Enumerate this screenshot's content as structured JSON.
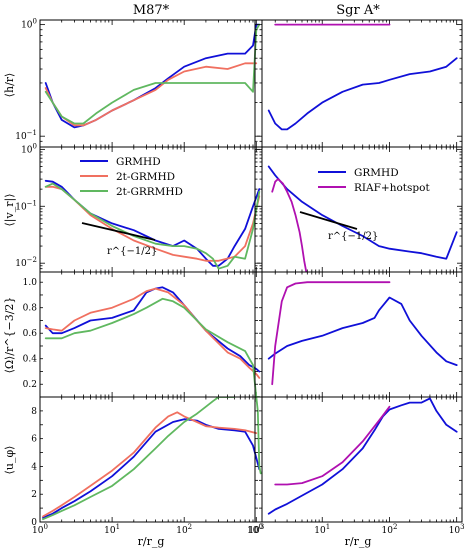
{
  "figure": {
    "col_titles": [
      "M87$^*$",
      "Sgr A$^*$"
    ],
    "col_title_display": [
      "M87*",
      "Sgr A*"
    ],
    "xlabel": "r/r_g",
    "ylabels": [
      "⟨h/r⟩",
      "⟨|v_r|⟩",
      "⟨Ω⟩/r^{−3/2}",
      "⟨u_φ⟩"
    ],
    "annotations": {
      "m87_slope": "r^{−1/2}",
      "sgr_slope": "r^{−1/2}"
    },
    "legend_left": [
      "GRMHD",
      "2t-GRMHD",
      "2t-GRRMHD"
    ],
    "legend_right": [
      "GRMHD",
      "RIAF+hotspot"
    ],
    "colors": {
      "GRMHD": "#1010d8",
      "2t-GRMHD": "#f07060",
      "2t-GRRMHD": "#60b860",
      "RIAF": "#b010b0"
    },
    "xtick_labels": [
      "10^0",
      "10^1",
      "10^2",
      "10^3"
    ]
  },
  "chart_data": [
    {
      "type": "line",
      "panel": "M87 h/r",
      "xscale": "log",
      "yscale": "log",
      "xlim": [
        1,
        1200
      ],
      "ylim": [
        0.08,
        1.1
      ],
      "yticks": [
        0.1,
        1
      ],
      "series": [
        {
          "name": "GRMHD",
          "x": [
            1.2,
            1.5,
            2,
            3,
            4,
            6,
            10,
            20,
            40,
            60,
            100,
            200,
            400,
            700,
            900,
            1000,
            1100
          ],
          "y": [
            0.3,
            0.2,
            0.14,
            0.12,
            0.125,
            0.14,
            0.17,
            0.21,
            0.27,
            0.33,
            0.42,
            0.5,
            0.55,
            0.55,
            0.65,
            1.0,
            1.0
          ]
        },
        {
          "name": "2t-GRMHD",
          "x": [
            1.2,
            1.5,
            2,
            3,
            4,
            6,
            10,
            20,
            40,
            60,
            100,
            200,
            400,
            700,
            1000
          ],
          "y": [
            0.27,
            0.2,
            0.15,
            0.125,
            0.125,
            0.14,
            0.17,
            0.21,
            0.26,
            0.32,
            0.38,
            0.42,
            0.4,
            0.45,
            0.45
          ]
        },
        {
          "name": "2t-GRRMHD",
          "x": [
            1.2,
            1.5,
            2,
            3,
            4,
            6,
            10,
            20,
            40,
            60,
            100,
            200,
            400,
            700,
            900,
            1000,
            1100
          ],
          "y": [
            0.25,
            0.2,
            0.15,
            0.13,
            0.13,
            0.16,
            0.2,
            0.26,
            0.3,
            0.3,
            0.3,
            0.3,
            0.3,
            0.3,
            0.25,
            0.9,
            1.0
          ]
        }
      ]
    },
    {
      "type": "line",
      "panel": "Sgr A h/r",
      "xscale": "log",
      "yscale": "log",
      "xlim": [
        1,
        1200
      ],
      "ylim": [
        0.08,
        1.1
      ],
      "series": [
        {
          "name": "GRMHD",
          "x": [
            1.6,
            2,
            2.5,
            3,
            4,
            6,
            10,
            20,
            40,
            70,
            100,
            200,
            400,
            700,
            1000
          ],
          "y": [
            0.17,
            0.13,
            0.115,
            0.115,
            0.13,
            0.16,
            0.2,
            0.25,
            0.29,
            0.3,
            0.32,
            0.36,
            0.38,
            0.42,
            0.5
          ]
        },
        {
          "name": "RIAF+hotspot",
          "x": [
            2,
            100
          ],
          "y": [
            1.0,
            1.0
          ]
        }
      ]
    },
    {
      "type": "line",
      "panel": "M87 |v_r|",
      "xscale": "log",
      "yscale": "log",
      "xlim": [
        1,
        1200
      ],
      "ylim": [
        0.007,
        1.1
      ],
      "yticks": [
        0.01,
        0.1,
        1
      ],
      "series": [
        {
          "name": "GRMHD",
          "x": [
            1.2,
            1.5,
            2,
            3,
            5,
            10,
            20,
            40,
            70,
            100,
            150,
            200,
            250,
            300,
            400,
            500,
            700,
            900,
            1100
          ],
          "y": [
            0.28,
            0.27,
            0.22,
            0.13,
            0.075,
            0.05,
            0.038,
            0.025,
            0.02,
            0.025,
            0.018,
            0.012,
            0.009,
            0.009,
            0.012,
            0.02,
            0.04,
            0.1,
            0.2
          ]
        },
        {
          "name": "2t-GRMHD",
          "x": [
            1.2,
            1.5,
            2,
            3,
            5,
            10,
            20,
            40,
            70,
            100,
            150,
            200,
            300,
            500,
            700,
            900,
            1100
          ],
          "y": [
            0.22,
            0.22,
            0.2,
            0.13,
            0.07,
            0.04,
            0.025,
            0.018,
            0.014,
            0.013,
            0.012,
            0.011,
            0.011,
            0.013,
            0.02,
            0.05,
            0.15
          ]
        },
        {
          "name": "2t-GRRMHD",
          "x": [
            1.2,
            1.5,
            2,
            3,
            5,
            10,
            20,
            40,
            70,
            100,
            150,
            200,
            250,
            300,
            400,
            500,
            700,
            900,
            1100
          ],
          "y": [
            0.22,
            0.25,
            0.2,
            0.13,
            0.075,
            0.045,
            0.03,
            0.022,
            0.02,
            0.02,
            0.018,
            0.015,
            0.012,
            0.008,
            0.009,
            0.013,
            0.012,
            0.04,
            0.18
          ]
        }
      ]
    },
    {
      "type": "line",
      "panel": "Sgr A |v_r|",
      "xscale": "log",
      "yscale": "log",
      "xlim": [
        1,
        1200
      ],
      "ylim": [
        0.007,
        1.1
      ],
      "series": [
        {
          "name": "GRMHD",
          "x": [
            1.6,
            2,
            3,
            5,
            10,
            20,
            40,
            70,
            100,
            200,
            300,
            500,
            700,
            1000
          ],
          "y": [
            0.5,
            0.35,
            0.2,
            0.12,
            0.07,
            0.045,
            0.03,
            0.02,
            0.018,
            0.016,
            0.015,
            0.013,
            0.012,
            0.035
          ]
        },
        {
          "name": "RIAF+hotspot",
          "x": [
            1.8,
            2,
            2.2,
            2.6,
            3,
            3.5,
            4,
            4.6,
            5,
            5.4,
            5.8
          ],
          "y": [
            0.18,
            0.27,
            0.3,
            0.25,
            0.18,
            0.12,
            0.07,
            0.035,
            0.02,
            0.011,
            0.007
          ]
        }
      ]
    },
    {
      "type": "line",
      "panel": "M87 Omega",
      "xscale": "log",
      "yscale": "linear",
      "xlim": [
        1,
        1200
      ],
      "ylim": [
        0.1,
        1.08
      ],
      "yticks": [
        0.2,
        0.4,
        0.6,
        0.8,
        1.0
      ],
      "series": [
        {
          "name": "GRMHD",
          "x": [
            1.2,
            1.5,
            2,
            3,
            5,
            10,
            20,
            30,
            40,
            50,
            70,
            100,
            200,
            400,
            600,
            800,
            1000,
            1100
          ],
          "y": [
            0.66,
            0.6,
            0.6,
            0.64,
            0.7,
            0.72,
            0.78,
            0.92,
            0.95,
            0.96,
            0.92,
            0.82,
            0.62,
            0.48,
            0.42,
            0.35,
            0.32,
            0.3
          ]
        },
        {
          "name": "2t-GRMHD",
          "x": [
            1.2,
            1.5,
            2,
            3,
            5,
            10,
            20,
            30,
            40,
            60,
            100,
            150,
            200,
            300,
            400,
            600,
            800,
            1000,
            1100
          ],
          "y": [
            0.64,
            0.63,
            0.62,
            0.7,
            0.76,
            0.8,
            0.87,
            0.93,
            0.95,
            0.92,
            0.82,
            0.7,
            0.62,
            0.52,
            0.45,
            0.4,
            0.33,
            0.28,
            0.25
          ]
        },
        {
          "name": "2t-GRRMHD",
          "x": [
            1.2,
            1.5,
            2,
            3,
            5,
            10,
            20,
            30,
            50,
            70,
            100,
            200,
            400,
            700,
            900,
            1000,
            1100
          ],
          "y": [
            0.56,
            0.56,
            0.56,
            0.6,
            0.62,
            0.68,
            0.75,
            0.8,
            0.87,
            0.85,
            0.8,
            0.63,
            0.53,
            0.46,
            0.35,
            0.1,
            0.1
          ]
        }
      ]
    },
    {
      "type": "line",
      "panel": "Sgr A Omega",
      "xscale": "log",
      "yscale": "linear",
      "xlim": [
        1,
        1200
      ],
      "ylim": [
        0.1,
        1.08
      ],
      "series": [
        {
          "name": "GRMHD",
          "x": [
            1.6,
            2,
            3,
            5,
            10,
            20,
            40,
            60,
            70,
            100,
            150,
            200,
            300,
            500,
            700,
            1000
          ],
          "y": [
            0.4,
            0.44,
            0.5,
            0.54,
            0.58,
            0.64,
            0.68,
            0.72,
            0.78,
            0.88,
            0.83,
            0.7,
            0.58,
            0.45,
            0.38,
            0.35
          ]
        },
        {
          "name": "RIAF+hotspot",
          "x": [
            1.8,
            2,
            2.5,
            3,
            4,
            6,
            10,
            20,
            50,
            100
          ],
          "y": [
            0.2,
            0.5,
            0.85,
            0.96,
            0.99,
            1.0,
            1.0,
            1.0,
            1.0,
            1.0
          ]
        }
      ]
    },
    {
      "type": "line",
      "panel": "M87 u_phi",
      "xscale": "log",
      "yscale": "linear",
      "xlim": [
        1,
        1200
      ],
      "ylim": [
        0,
        9
      ],
      "yticks": [
        0,
        2,
        4,
        6,
        8
      ],
      "series": [
        {
          "name": "GRMHD",
          "x": [
            1.1,
            1.5,
            2,
            3,
            5,
            10,
            20,
            40,
            70,
            100,
            150,
            200,
            300,
            500,
            700,
            900,
            1100
          ],
          "y": [
            0.3,
            0.6,
            1.0,
            1.5,
            2.2,
            3.3,
            4.7,
            6.5,
            7.2,
            7.4,
            7.3,
            7.0,
            6.7,
            6.6,
            6.5,
            5.5,
            3.8
          ]
        },
        {
          "name": "2t-GRMHD",
          "x": [
            1.1,
            1.5,
            2,
            3,
            5,
            10,
            20,
            40,
            60,
            80,
            100,
            150,
            200,
            300,
            500,
            700,
            1000
          ],
          "y": [
            0.4,
            0.8,
            1.2,
            1.8,
            2.6,
            3.7,
            5.0,
            6.8,
            7.6,
            7.9,
            7.6,
            7.2,
            6.9,
            6.8,
            6.7,
            6.6,
            6.4
          ]
        },
        {
          "name": "2t-GRRMHD",
          "x": [
            1.1,
            1.5,
            2,
            3,
            5,
            10,
            20,
            40,
            60,
            100,
            150,
            200,
            250,
            300,
            400,
            500
          ],
          "y": [
            0.2,
            0.5,
            0.8,
            1.2,
            1.8,
            2.6,
            3.8,
            5.3,
            6.2,
            7.2,
            7.8,
            8.3,
            8.7,
            9.0,
            9.0,
            9.0
          ]
        },
        {
          "name": "2t-GRRMHD",
          "x": [
            1000,
            1050,
            1100,
            1150
          ],
          "y": [
            9.0,
            8.0,
            4.0,
            3.5
          ]
        }
      ]
    },
    {
      "type": "line",
      "panel": "Sgr A u_phi",
      "xscale": "log",
      "yscale": "linear",
      "xlim": [
        1,
        1200
      ],
      "ylim": [
        0,
        9
      ],
      "series": [
        {
          "name": "GRMHD",
          "x": [
            1.6,
            2,
            3,
            5,
            10,
            20,
            40,
            60,
            80,
            100,
            150,
            200,
            300,
            400,
            500,
            700,
            1000
          ],
          "y": [
            0.6,
            0.9,
            1.3,
            1.9,
            2.7,
            3.8,
            5.3,
            6.6,
            7.6,
            8.1,
            8.4,
            8.6,
            8.6,
            8.9,
            8.0,
            7.0,
            6.5
          ]
        },
        {
          "name": "RIAF+hotspot",
          "x": [
            2,
            3,
            5,
            10,
            20,
            40,
            70,
            100
          ],
          "y": [
            2.7,
            2.7,
            2.8,
            3.3,
            4.3,
            5.8,
            7.3,
            8.3
          ]
        }
      ]
    }
  ]
}
